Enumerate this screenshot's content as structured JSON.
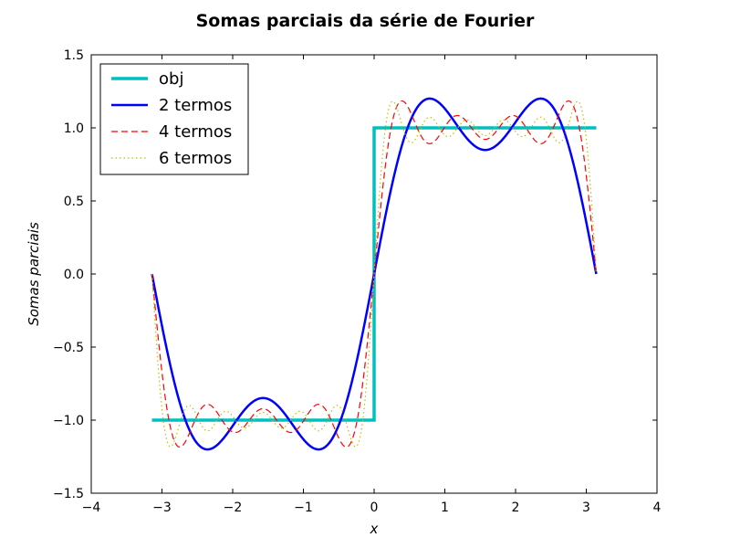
{
  "chart_data": {
    "type": "line",
    "title": "Somas parciais da série de Fourier",
    "xlabel": "x",
    "ylabel": "Somas parciais",
    "xlim": [
      -4,
      4
    ],
    "ylim": [
      -1.5,
      1.5
    ],
    "xticks": [
      -4,
      -3,
      -2,
      -1,
      0,
      1,
      2,
      3,
      4
    ],
    "yticks": [
      -1.5,
      -1.0,
      -0.5,
      0.0,
      0.5,
      1.0,
      1.5
    ],
    "xtick_labels": [
      "−4",
      "−3",
      "−2",
      "−1",
      "0",
      "1",
      "2",
      "3",
      "4"
    ],
    "ytick_labels": [
      "−1.5",
      "−1.0",
      "−0.5",
      "0.0",
      "0.5",
      "1.0",
      "1.5"
    ],
    "grid": false,
    "legend_position": "top-left",
    "series": [
      {
        "name": "obj",
        "color": "#00bfbf",
        "style": "solid",
        "description_function": "square wave (sign of x)",
        "x": [
          -3.1416,
          0,
          0,
          3.1416
        ],
        "y": [
          -1,
          -1,
          1,
          1
        ]
      },
      {
        "name": "2 termos",
        "color": "#0000ff",
        "style": "solid",
        "description_function": "(4/pi)(sin x + sin 3x / 3)",
        "x": [
          -3.1416,
          -2.3562,
          -1.5708,
          -0.7854,
          0,
          0.7854,
          1.5708,
          2.3562,
          3.1416
        ],
        "y": [
          0,
          -1.2,
          -0.85,
          -1.2,
          0,
          1.2,
          0.85,
          1.2,
          0
        ]
      },
      {
        "name": "4 termos",
        "color": "#ff0000",
        "style": "dashed",
        "description_function": "(4/pi) sum_{k=1..4} sin((2k-1)x)/(2k-1)",
        "x": [
          -3.1416,
          0,
          3.1416
        ],
        "y": [
          0,
          0,
          0
        ]
      },
      {
        "name": "6 termos",
        "color": "#bfbf00",
        "style": "dotted",
        "description_function": "(4/pi) sum_{k=1..6} sin((2k-1)x)/(2k-1)",
        "x": [
          -3.1416,
          0,
          3.1416
        ],
        "y": [
          0,
          0,
          0
        ]
      }
    ]
  }
}
